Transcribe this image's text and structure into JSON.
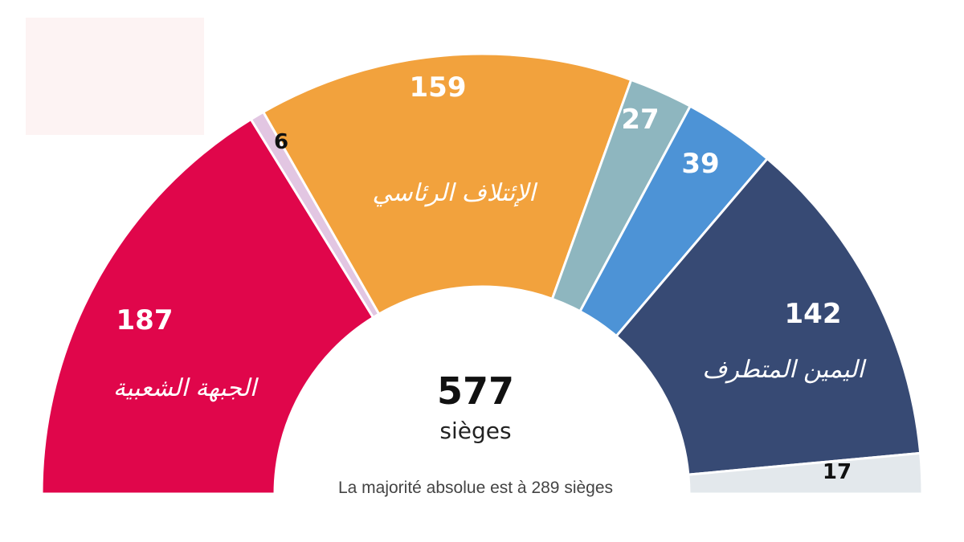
{
  "chart_data": {
    "type": "pie",
    "variant": "hemicycle",
    "title": "",
    "total": "577",
    "total_unit": "sièges",
    "note": "La majorité absolue est à 289 sièges",
    "segments": [
      {
        "name": "الجبهة الشعبية",
        "value": 187,
        "color": "#e0064b",
        "value_label": "187"
      },
      {
        "name": "",
        "value": 6,
        "color": "#e2c6e2",
        "value_label": "6"
      },
      {
        "name": "الإئتلاف الرئاسي",
        "value": 159,
        "color": "#f2a23d",
        "value_label": "159"
      },
      {
        "name": "",
        "value": 27,
        "color": "#8eb6bf",
        "value_label": "27"
      },
      {
        "name": "",
        "value": 39,
        "color": "#4d93d6",
        "value_label": "39"
      },
      {
        "name": "اليمين المتطرف",
        "value": 142,
        "color": "#374a74",
        "value_label": "142"
      },
      {
        "name": "",
        "value": 17,
        "color": "#e3e8ec",
        "value_label": "17"
      }
    ]
  }
}
